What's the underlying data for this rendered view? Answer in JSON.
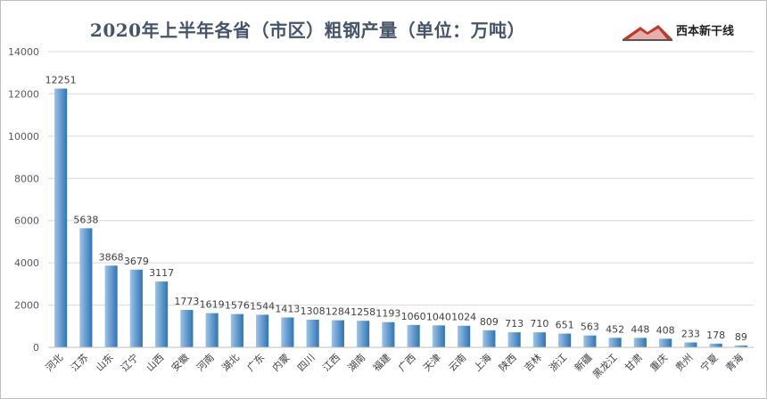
{
  "page": {
    "title": "2020年上半年各省（市区）粗钢产量（单位：万吨）",
    "logo_text": "西本新干线"
  },
  "colors": {
    "bar_light": "#9dc3e6",
    "bar_dark": "#2e75b6",
    "grid": "#d9d9d9",
    "title": "#44546a",
    "logo_red": "#c0392b",
    "logo_dark": "#1f1f1f"
  },
  "chart_data": {
    "type": "bar",
    "title": "2020年上半年各省（市区）粗钢产量（单位：万吨）",
    "xlabel": "",
    "ylabel": "",
    "ylim": [
      0,
      14000
    ],
    "yticks": [
      0,
      2000,
      4000,
      6000,
      8000,
      10000,
      12000,
      14000
    ],
    "grid": true,
    "legend": "none",
    "categories": [
      "河北",
      "江苏",
      "山东",
      "辽宁",
      "山西",
      "安徽",
      "河南",
      "湖北",
      "广东",
      "内蒙",
      "四川",
      "江西",
      "湖南",
      "福建",
      "广西",
      "天津",
      "云南",
      "上海",
      "陕西",
      "吉林",
      "浙江",
      "新疆",
      "黑龙江",
      "甘肃",
      "重庆",
      "贵州",
      "宁夏",
      "青海"
    ],
    "values": [
      12251,
      5638,
      3868,
      3679,
      3117,
      1773,
      1619,
      1576,
      1544,
      1413,
      1308,
      1284,
      1258,
      1193,
      1060,
      1040,
      1024,
      809,
      713,
      710,
      651,
      563,
      452,
      448,
      408,
      233,
      178,
      89
    ]
  }
}
